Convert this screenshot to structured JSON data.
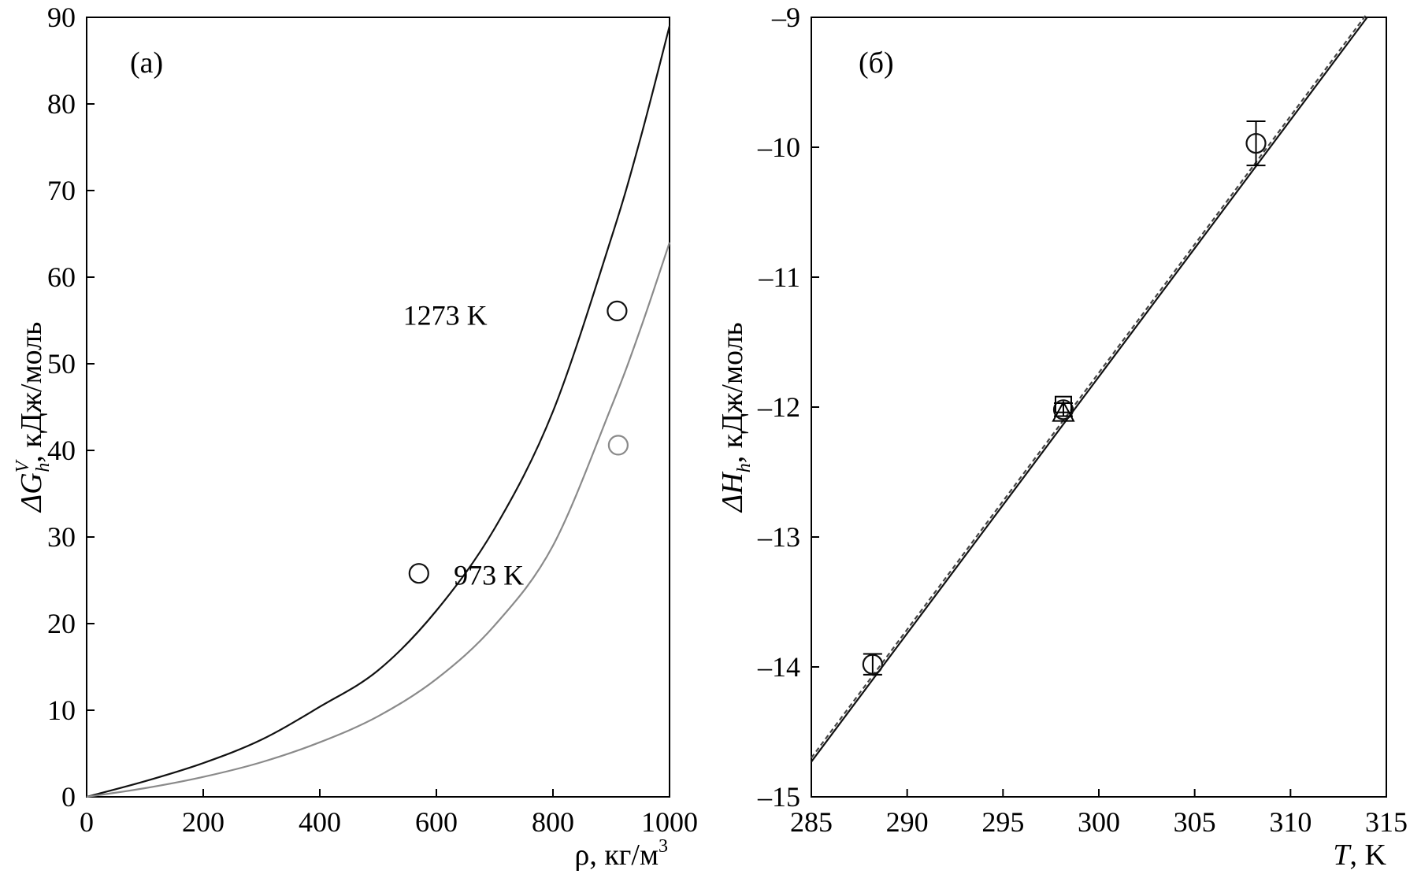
{
  "chart_data": [
    {
      "type": "line",
      "panel_label": "(а)",
      "xlabel": "ρ, кг/м",
      "xlabel_sup": "3",
      "ylabel_prefix": "ΔG",
      "ylabel_sup": "V",
      "ylabel_sub": "h",
      "ylabel_suffix": ", кДж/моль",
      "xlim": [
        0,
        1000
      ],
      "ylim": [
        0,
        90
      ],
      "xticks": [
        0,
        200,
        400,
        600,
        800,
        1000
      ],
      "yticks": [
        0,
        10,
        20,
        30,
        40,
        50,
        60,
        70,
        80,
        90
      ],
      "grid": false,
      "series": [
        {
          "name": "1273 K",
          "color": "#111111",
          "x": [
            0,
            100,
            200,
            300,
            400,
            500,
            600,
            700,
            800,
            900,
            950,
            1000
          ],
          "y": [
            0,
            1.8,
            3.9,
            6.6,
            10.4,
            14.6,
            21.5,
            31.0,
            44.5,
            64.5,
            76.0,
            89.0
          ]
        },
        {
          "name": "973 K",
          "color": "#8a8a8a",
          "x": [
            0,
            100,
            200,
            300,
            400,
            500,
            600,
            700,
            800,
            900,
            950,
            1000
          ],
          "y": [
            0,
            1.0,
            2.3,
            4.0,
            6.3,
            9.3,
            13.6,
            19.8,
            29.0,
            45.0,
            54.0,
            64.0
          ]
        }
      ],
      "points": [
        {
          "x": 570,
          "y": 25.8,
          "color": "#111111"
        },
        {
          "x": 910,
          "y": 56.1,
          "color": "#111111"
        },
        {
          "x": 912,
          "y": 40.6,
          "color": "#8a8a8a"
        }
      ],
      "annotations": [
        {
          "text": "1273 K",
          "x": 615,
          "y": 54.5
        },
        {
          "text": "973 K",
          "x": 690,
          "y": 24.5
        }
      ]
    },
    {
      "type": "line",
      "panel_label": "(б)",
      "xlabel_var": "T",
      "xlabel_unit": ", K",
      "ylabel_prefix": "ΔH",
      "ylabel_sub": "h",
      "ylabel_suffix": ", кДж/моль",
      "xlim": [
        285,
        315
      ],
      "ylim": [
        -15,
        -9
      ],
      "xticks": [
        285,
        290,
        295,
        300,
        305,
        310,
        315
      ],
      "yticks": [
        -15,
        -14,
        -13,
        -12,
        -11,
        -10,
        -9
      ],
      "ytick_labels": [
        "–15",
        "–14",
        "–13",
        "–12",
        "–11",
        "–10",
        "–9"
      ],
      "grid": false,
      "series": [
        {
          "x": [
            285,
            314
          ],
          "y": [
            -14.73,
            -9.0
          ],
          "color": "#111111"
        },
        {
          "x": [
            285,
            314
          ],
          "y": [
            -14.7,
            -8.97
          ],
          "color": "#444444"
        }
      ],
      "points": [
        {
          "x": 288.2,
          "y": -13.98,
          "marker": "circle",
          "err": 0.08
        },
        {
          "x": 298.15,
          "y": -12.02,
          "marker": "circle",
          "err": 0.05
        },
        {
          "x": 298.15,
          "y": -11.98,
          "marker": "square",
          "err": 0.0
        },
        {
          "x": 298.15,
          "y": -12.04,
          "marker": "triangle",
          "err": 0.0
        },
        {
          "x": 308.2,
          "y": -9.97,
          "marker": "circle",
          "err": 0.17
        }
      ]
    }
  ]
}
